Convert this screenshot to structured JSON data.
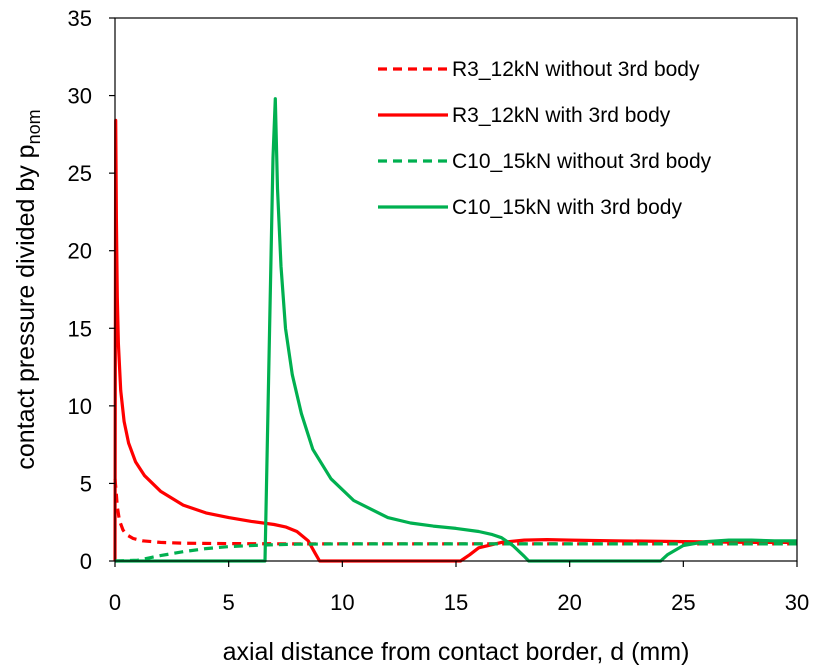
{
  "chart_data": {
    "type": "line",
    "title": "",
    "xlabel": "axial distance from contact border, d (mm)",
    "ylabel": "contact pressure divided by p",
    "ylabel_subscript": "nom",
    "xlim": [
      0,
      30
    ],
    "ylim": [
      0,
      35
    ],
    "xticks": [
      0,
      5,
      10,
      15,
      20,
      25,
      30
    ],
    "yticks": [
      0,
      5,
      10,
      15,
      20,
      25,
      30,
      35
    ],
    "grid": false,
    "legend_position": "top-right",
    "series": [
      {
        "name": "R3_12kN without 3rd body",
        "color": "#ff0000",
        "dash": "dashed",
        "x": [
          0,
          0.05,
          0.1,
          0.2,
          0.35,
          0.5,
          0.8,
          1.2,
          2,
          3,
          5,
          8,
          12,
          16,
          20,
          25,
          30
        ],
        "y": [
          5.3,
          4.5,
          3.5,
          2.6,
          2.0,
          1.7,
          1.45,
          1.3,
          1.2,
          1.15,
          1.12,
          1.1,
          1.1,
          1.1,
          1.1,
          1.1,
          1.1
        ]
      },
      {
        "name": "R3_12kN with 3rd body",
        "color": "#ff0000",
        "dash": "solid",
        "x": [
          0,
          0.03,
          0.06,
          0.1,
          0.15,
          0.25,
          0.4,
          0.6,
          0.9,
          1.3,
          2,
          3,
          4,
          5,
          6,
          7,
          7.5,
          8,
          8.5,
          8.8,
          9,
          10,
          12,
          14,
          15.2,
          15.6,
          16,
          17,
          18,
          19,
          20,
          22,
          25,
          28,
          30
        ],
        "y": [
          0,
          28.4,
          22,
          17,
          14,
          11,
          9,
          7.6,
          6.4,
          5.5,
          4.5,
          3.6,
          3.1,
          2.8,
          2.55,
          2.35,
          2.2,
          1.9,
          1.3,
          0.5,
          0,
          0,
          0,
          0,
          0,
          0.4,
          0.85,
          1.2,
          1.35,
          1.38,
          1.35,
          1.3,
          1.25,
          1.2,
          1.2
        ]
      },
      {
        "name": "C10_15kN without 3rd body",
        "color": "#00b050",
        "dash": "dashed",
        "x": [
          0,
          1,
          1.5,
          2,
          3,
          4,
          5,
          6,
          7,
          8,
          10,
          12,
          15,
          20,
          25,
          30
        ],
        "y": [
          0,
          0.05,
          0.2,
          0.35,
          0.6,
          0.8,
          0.93,
          1.0,
          1.05,
          1.08,
          1.1,
          1.1,
          1.1,
          1.1,
          1.1,
          1.1
        ]
      },
      {
        "name": "C10_15kN with 3rd body",
        "color": "#00b050",
        "dash": "solid",
        "x": [
          0,
          6.6,
          6.8,
          6.95,
          7.05,
          7.15,
          7.3,
          7.5,
          7.8,
          8.2,
          8.7,
          9.5,
          10.5,
          12,
          13,
          14,
          15,
          16,
          16.6,
          17,
          17.5,
          18,
          18.2,
          20,
          22,
          24,
          24.3,
          25,
          26,
          27,
          28,
          29,
          30
        ],
        "y": [
          0,
          0,
          15,
          26,
          29.8,
          24,
          19,
          15,
          12,
          9.5,
          7.2,
          5.3,
          3.9,
          2.8,
          2.45,
          2.25,
          2.1,
          1.9,
          1.7,
          1.5,
          1.0,
          0.3,
          0,
          0,
          0,
          0,
          0.4,
          1.0,
          1.25,
          1.35,
          1.35,
          1.3,
          1.3
        ]
      }
    ]
  }
}
